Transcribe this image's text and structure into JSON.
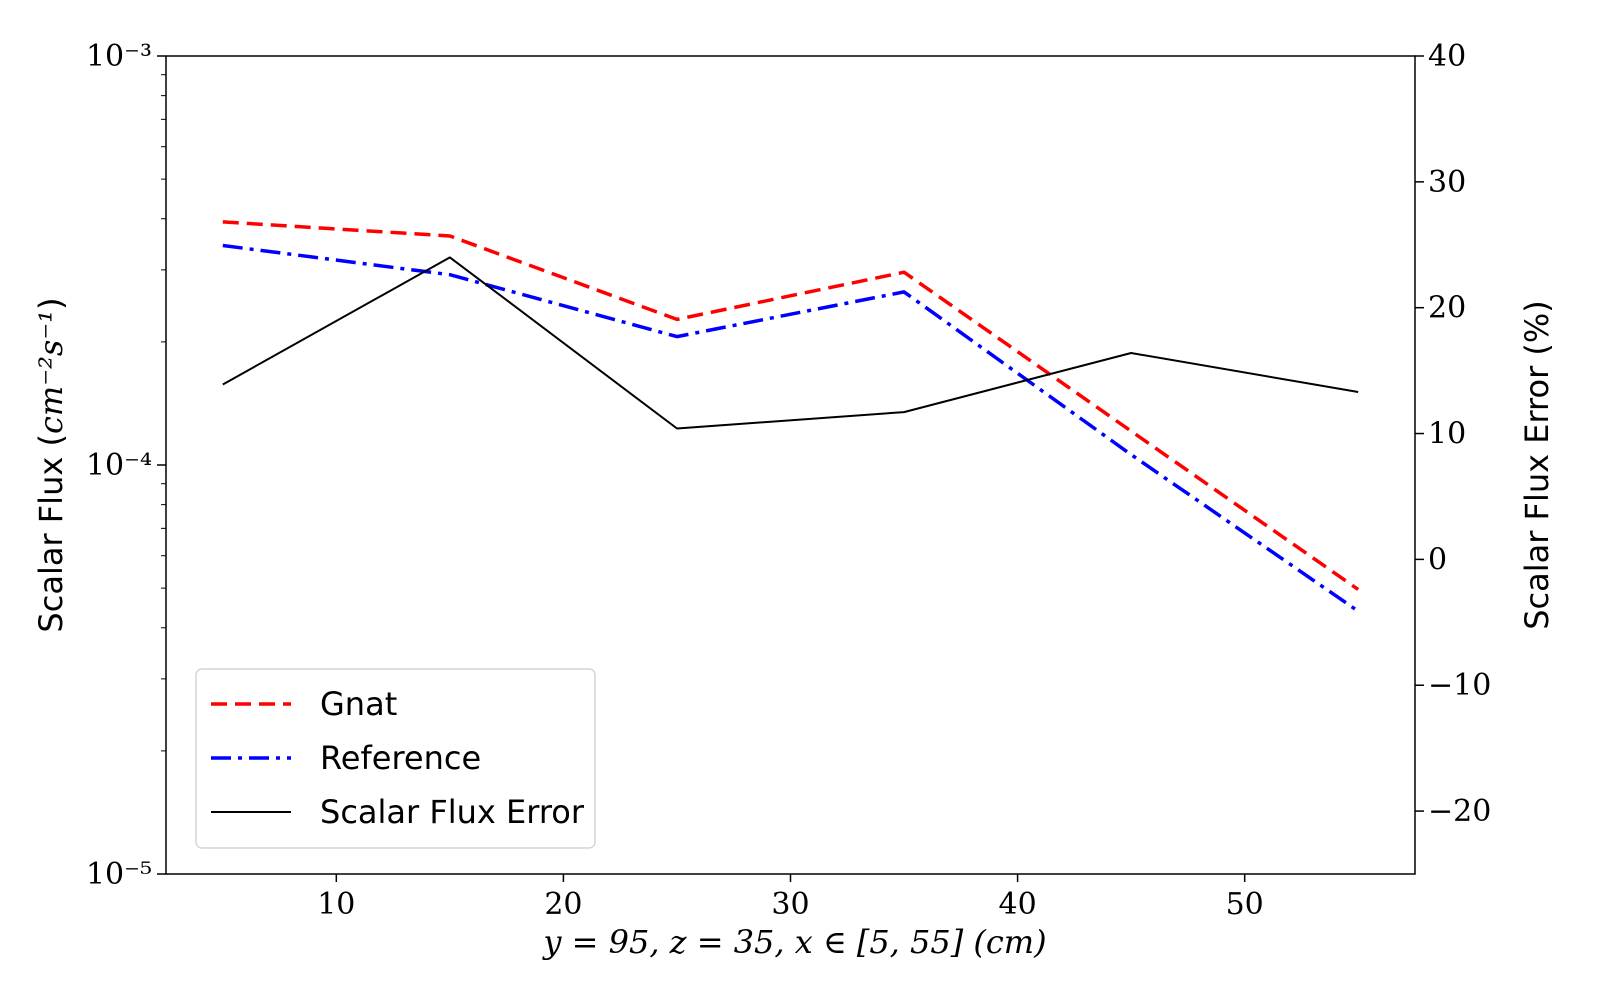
{
  "chart_data": {
    "type": "line",
    "x": [
      5,
      15,
      25,
      35,
      45,
      55
    ],
    "xlim": [
      2.5,
      57.5
    ],
    "x_ticks": [
      10,
      20,
      30,
      40,
      50
    ],
    "x_tick_labels": [
      "10",
      "20",
      "30",
      "40",
      "50"
    ],
    "xlabel": "y = 95, z = 35, x ∈ [5, 55] (cm)",
    "left_axis": {
      "label_text": "Scalar Flux (",
      "label_math": "cm⁻²s⁻¹",
      "label_close": ")",
      "scale": "log",
      "ylim": [
        1e-05,
        0.001
      ],
      "ticks": [
        0.001,
        0.0001,
        1e-05
      ],
      "tick_labels": [
        "10⁻³",
        "10⁻⁴",
        "10⁻⁵"
      ]
    },
    "right_axis": {
      "label": "Scalar Flux Error (%)",
      "scale": "linear",
      "ylim": [
        -25,
        40
      ],
      "ticks": [
        40,
        30,
        20,
        10,
        0,
        -10,
        -20
      ],
      "tick_labels": [
        "40",
        "30",
        "20",
        "10",
        "0",
        "−10",
        "−20"
      ]
    },
    "series": [
      {
        "name": "Gnat",
        "axis": "left",
        "color": "#ff0000",
        "style": "dashed",
        "values": [
          0.000393,
          0.000363,
          0.000227,
          0.000296,
          0.000121,
          4.96e-05
        ]
      },
      {
        "name": "Reference",
        "axis": "left",
        "color": "#0000ff",
        "style": "dashdot",
        "values": [
          0.000344,
          0.000292,
          0.000206,
          0.000265,
          0.000106,
          4.39e-05
        ]
      },
      {
        "name": "Scalar Flux Error",
        "axis": "right",
        "color": "#000000",
        "style": "solid",
        "values": [
          13.9,
          24.0,
          10.4,
          11.7,
          16.4,
          13.3
        ]
      }
    ],
    "legend_position": "lower-left",
    "grid": false
  }
}
